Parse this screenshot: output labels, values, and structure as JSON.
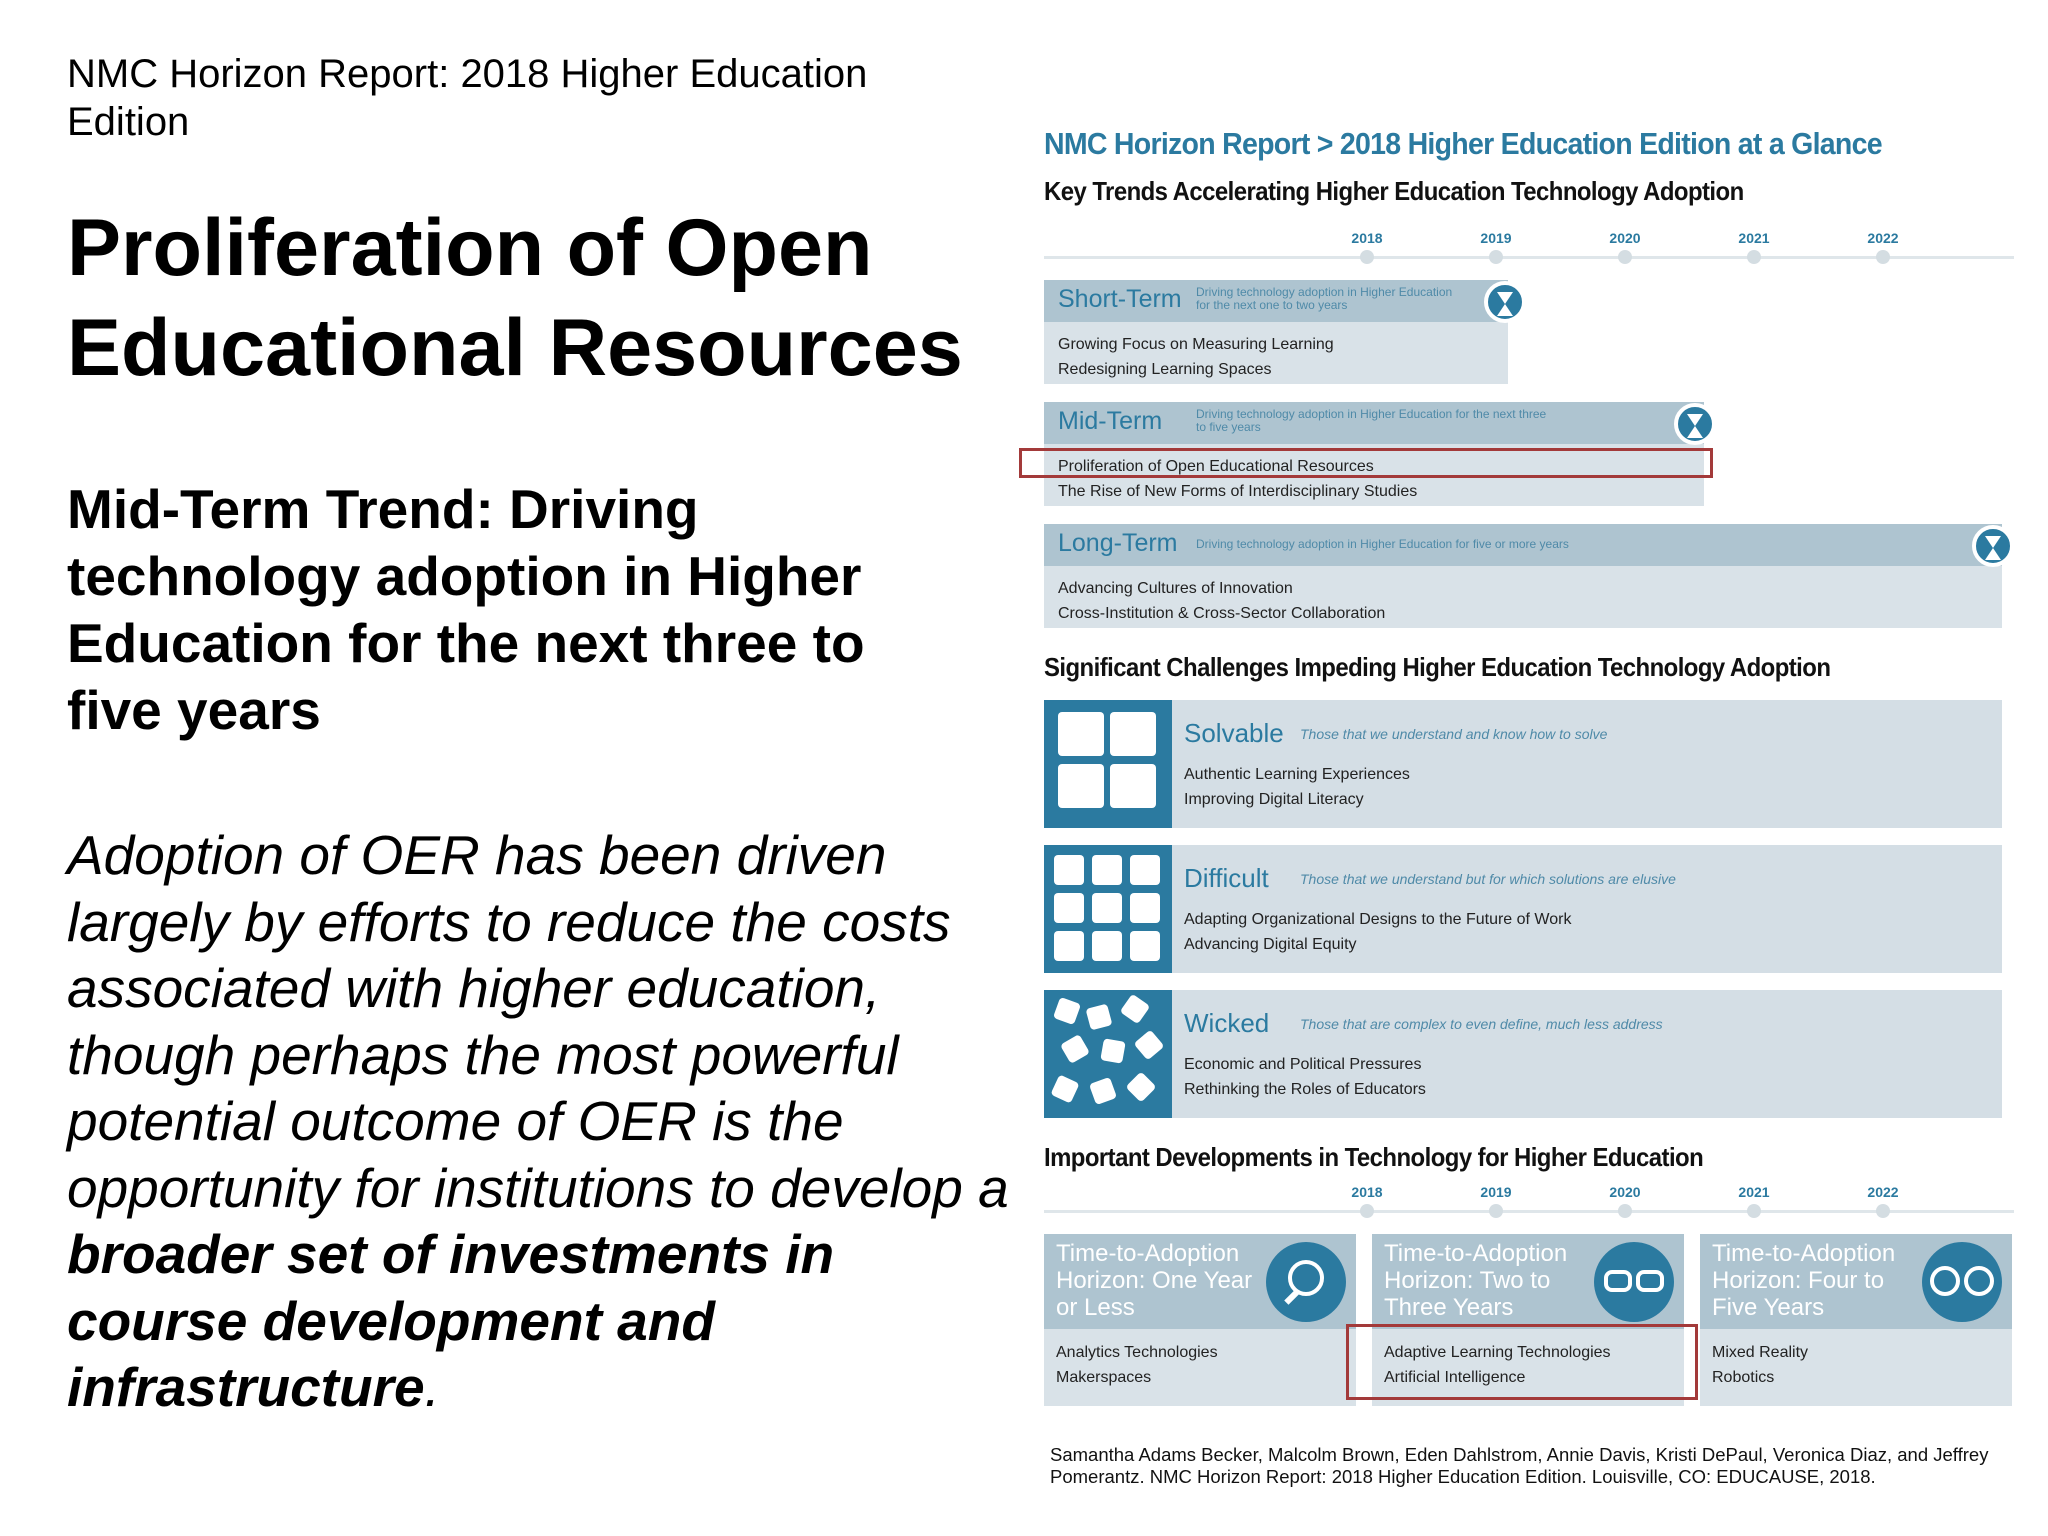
{
  "left": {
    "report_edition": "NMC Horizon Report: 2018 Higher Education Edition",
    "title": "Proliferation of Open Educational Resources",
    "subtitle": "Mid-Term Trend: Driving technology adoption in Higher Education for the next three to five years",
    "body_regular_1": "Adoption of OER has been driven largely by efforts to reduce the costs associated with higher education, though perhaps the most powerful potential outcome of OER is the opportunity for institutions to develop a ",
    "body_bold": "broader set of investments in course development and infrastructure",
    "body_regular_2": "."
  },
  "infographic": {
    "title": "NMC Horizon Report > 2018 Higher Education Edition at a Glance",
    "trends_heading": "Key Trends Accelerating Higher Education Technology Adoption",
    "years": [
      "2018",
      "2019",
      "2020",
      "2021",
      "2022"
    ],
    "terms": [
      {
        "name": "Short-Term",
        "description": "Driving technology adoption in Higher Education for the next one to two years",
        "items": [
          "Growing Focus on Measuring Learning",
          "Redesigning Learning Spaces"
        ],
        "icon": "hourglass-icon"
      },
      {
        "name": "Mid-Term",
        "description": "Driving technology adoption in Higher Education for the next three to five years",
        "items": [
          "Proliferation of Open Educational Resources",
          "The Rise of New Forms of Interdisciplinary Studies"
        ],
        "icon": "hourglass-icon"
      },
      {
        "name": "Long-Term",
        "description": "Driving technology adoption in Higher Education for five or more years",
        "items": [
          "Advancing Cultures of Innovation",
          "Cross-Institution & Cross-Sector Collaboration"
        ],
        "icon": "hourglass-icon"
      }
    ],
    "challenges_heading": "Significant Challenges Impeding Higher Education Technology Adoption",
    "challenges": [
      {
        "name": "Solvable",
        "description": "Those that we understand and know how to solve",
        "items": [
          "Authentic Learning Experiences",
          "Improving Digital Literacy"
        ],
        "icon": "puzzle-icon"
      },
      {
        "name": "Difficult",
        "description": "Those that we understand but for which solutions are elusive",
        "items": [
          "Adapting Organizational Designs to the Future of Work",
          "Advancing Digital Equity"
        ],
        "icon": "puzzle-icon"
      },
      {
        "name": "Wicked",
        "description": "Those that are complex to even define, much less address",
        "items": [
          "Economic and Political Pressures",
          "Rethinking the Roles of Educators"
        ],
        "icon": "puzzle-icon"
      }
    ],
    "developments_heading": "Important Developments in Technology for Higher Education",
    "developments": [
      {
        "heading": "Time-to-Adoption Horizon: One Year or Less",
        "items": [
          "Analytics Technologies",
          "Makerspaces"
        ],
        "icon": "magnifier-icon"
      },
      {
        "heading": "Time-to-Adoption Horizon: Two to Three Years",
        "items": [
          "Adaptive Learning Technologies",
          "Artificial Intelligence"
        ],
        "icon": "glasses-icon"
      },
      {
        "heading": "Time-to-Adoption Horizon: Four to Five Years",
        "items": [
          "Mixed Reality",
          "Robotics"
        ],
        "icon": "binoculars-icon"
      }
    ],
    "colors": {
      "accent": "#2b7aa0",
      "bar": "#aec4d0",
      "panel": "#d9e2e8",
      "highlight": "#a33a3a"
    }
  },
  "citation": "Samantha Adams Becker, Malcolm Brown, Eden Dahlstrom, Annie Davis, Kristi DePaul, Veronica Diaz, and Jeffrey Pomerantz. NMC Horizon Report: 2018 Higher Education Edition. Louisville, CO: EDUCAUSE, 2018."
}
